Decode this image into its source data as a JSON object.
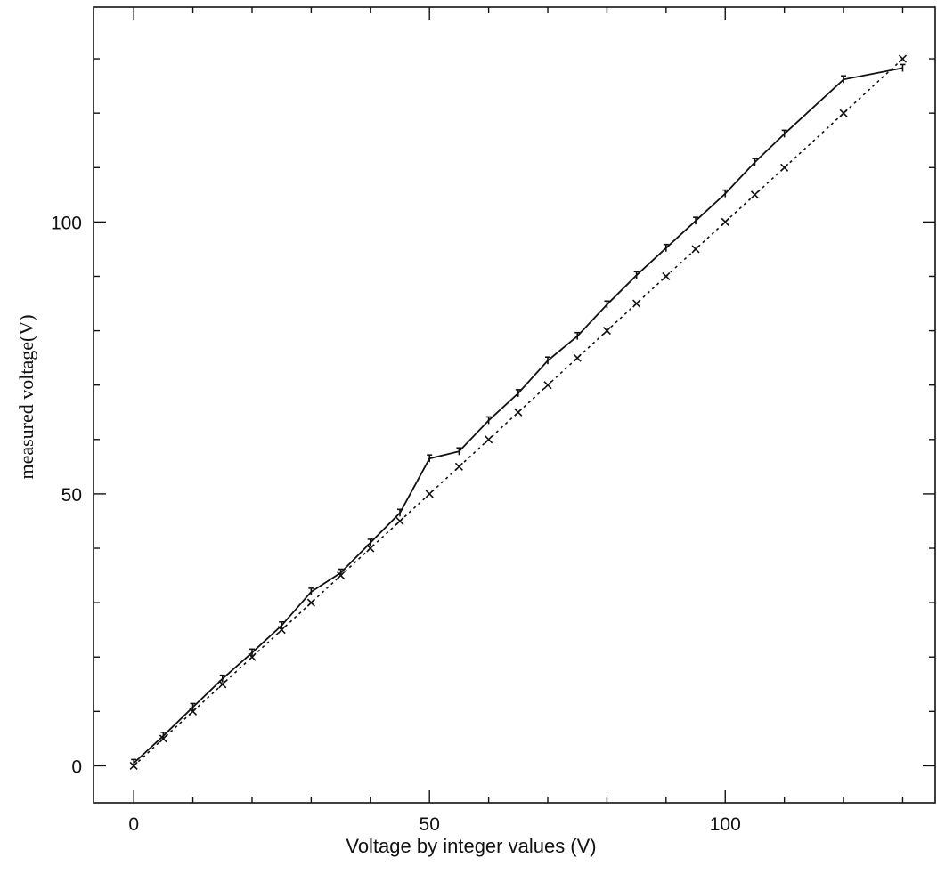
{
  "chart_data": {
    "type": "line",
    "title": "",
    "xlabel": "Voltage by integer values (V)",
    "ylabel": "measured voltage(V)",
    "xlim": [
      -6.8,
      135.5
    ],
    "ylim": [
      -6.8,
      139.5
    ],
    "x_ticks": [
      0,
      50,
      100
    ],
    "y_ticks": [
      0,
      50,
      100
    ],
    "grid": false,
    "series": [
      {
        "style": "solid",
        "x": [
          0,
          5,
          10,
          15,
          20,
          25,
          30,
          35,
          40,
          45,
          50,
          55,
          60,
          65,
          70,
          75,
          80,
          85,
          90,
          95,
          100,
          105,
          110,
          120,
          130
        ],
        "y": [
          0.5,
          5.5,
          10.8,
          16,
          20.8,
          25.8,
          32,
          35.5,
          41,
          46.5,
          56.5,
          57.8,
          63.5,
          68.5,
          74.5,
          79,
          84.8,
          90.2,
          95.2,
          100.2,
          105.2,
          111,
          116.2,
          126.2,
          128.3
        ]
      },
      {
        "style": "dotted",
        "x": [
          0,
          5,
          10,
          15,
          20,
          25,
          30,
          35,
          40,
          45,
          50,
          55,
          60,
          65,
          70,
          75,
          80,
          85,
          90,
          95,
          100,
          105,
          110,
          120,
          130
        ],
        "y": [
          0,
          5,
          10,
          15,
          20,
          25,
          30,
          35,
          40,
          45,
          50,
          55,
          60,
          65,
          70,
          75,
          80,
          85,
          90,
          95,
          100,
          105,
          110,
          120,
          130
        ]
      }
    ]
  }
}
